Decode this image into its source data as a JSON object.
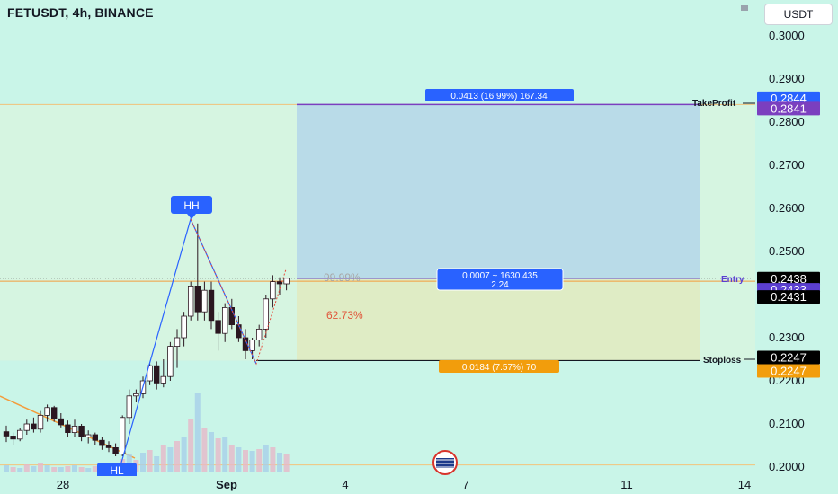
{
  "header": {
    "title": "FETUSDT, 4h, BINANCE",
    "currency_button": "USDT"
  },
  "colors": {
    "background": "#c9f5e8",
    "candle_up": "#ffffff",
    "candle_down": "#2b1720",
    "entry_line": "#5b3fd1",
    "target_zone": "#b9dbe8",
    "stop_zone": "#dfecc5",
    "ema_line": "#f39c3c",
    "trend_line": "#2962ff"
  },
  "chart_data": {
    "type": "candlestick",
    "y_axis": {
      "min": 0.2,
      "max": 0.3,
      "ticks": [
        "0.3000",
        "0.2900",
        "0.2800",
        "0.2700",
        "0.2600",
        "0.2500",
        "0.2300",
        "0.2200",
        "0.2100",
        "0.2000"
      ]
    },
    "x_axis": {
      "ticks": [
        "28",
        "Sep",
        "4",
        "7",
        "11",
        "14"
      ]
    },
    "candles": [
      [
        0.2082,
        0.2096,
        0.2058,
        0.2072
      ],
      [
        0.2072,
        0.208,
        0.205,
        0.2065
      ],
      [
        0.2065,
        0.209,
        0.206,
        0.2085
      ],
      [
        0.2085,
        0.211,
        0.2075,
        0.21
      ],
      [
        0.21,
        0.2115,
        0.208,
        0.2088
      ],
      [
        0.2088,
        0.213,
        0.208,
        0.212
      ],
      [
        0.212,
        0.2145,
        0.2105,
        0.2138
      ],
      [
        0.2138,
        0.2142,
        0.2105,
        0.2112
      ],
      [
        0.2112,
        0.2125,
        0.2092,
        0.2098
      ],
      [
        0.2098,
        0.2108,
        0.207,
        0.208
      ],
      [
        0.208,
        0.211,
        0.207,
        0.2095
      ],
      [
        0.2095,
        0.21,
        0.206,
        0.207
      ],
      [
        0.207,
        0.2085,
        0.2055,
        0.2075
      ],
      [
        0.2075,
        0.208,
        0.205,
        0.2062
      ],
      [
        0.2062,
        0.207,
        0.204,
        0.205
      ],
      [
        0.205,
        0.206,
        0.2035,
        0.2045
      ],
      [
        0.2045,
        0.2055,
        0.2025,
        0.203
      ],
      [
        0.203,
        0.212,
        0.2025,
        0.2115
      ],
      [
        0.2115,
        0.218,
        0.21,
        0.2165
      ],
      [
        0.2165,
        0.218,
        0.215,
        0.217
      ],
      [
        0.217,
        0.221,
        0.216,
        0.22
      ],
      [
        0.22,
        0.224,
        0.219,
        0.2235
      ],
      [
        0.2235,
        0.2245,
        0.218,
        0.2195
      ],
      [
        0.2195,
        0.225,
        0.2185,
        0.221
      ],
      [
        0.221,
        0.229,
        0.22,
        0.228
      ],
      [
        0.228,
        0.232,
        0.223,
        0.23
      ],
      [
        0.23,
        0.236,
        0.228,
        0.235
      ],
      [
        0.235,
        0.243,
        0.234,
        0.242
      ],
      [
        0.242,
        0.2565,
        0.234,
        0.236
      ],
      [
        0.236,
        0.243,
        0.234,
        0.241
      ],
      [
        0.241,
        0.243,
        0.232,
        0.234
      ],
      [
        0.234,
        0.236,
        0.227,
        0.231
      ],
      [
        0.231,
        0.238,
        0.229,
        0.237
      ],
      [
        0.237,
        0.239,
        0.232,
        0.233
      ],
      [
        0.233,
        0.235,
        0.229,
        0.23
      ],
      [
        0.23,
        0.232,
        0.225,
        0.227
      ],
      [
        0.227,
        0.23,
        0.225,
        0.2295
      ],
      [
        0.2295,
        0.233,
        0.228,
        0.232
      ],
      [
        0.232,
        0.24,
        0.23,
        0.239
      ],
      [
        0.239,
        0.2445,
        0.237,
        0.243
      ],
      [
        0.243,
        0.244,
        0.24,
        0.2425
      ],
      [
        0.2425,
        0.2438,
        0.241,
        0.2438
      ]
    ],
    "position": {
      "entry": 0.2438,
      "take_profit": 0.2841,
      "stop_loss": 0.2247
    },
    "price_labels": [
      {
        "text": "0.2844",
        "value": 0.2844,
        "color": "#2962ff"
      },
      {
        "text": "0.2841",
        "value": 0.2841,
        "color": "#7b3fbf"
      },
      {
        "text": "0.2438",
        "value": 0.2438,
        "color": "#000000",
        "sub": "02:19:37"
      },
      {
        "text": "0.2433",
        "value": 0.2433,
        "color": "#5b3fd1"
      },
      {
        "text": "0.2431",
        "value": 0.2431,
        "color": "#000000"
      },
      {
        "text": "0.2247",
        "value": 0.2247,
        "color": "#000000"
      },
      {
        "text": "0.2247",
        "value": 0.2247,
        "color": "#f29d0c"
      }
    ],
    "annotations": {
      "take_profit_info": "0.0413 (16.99%) 167.34",
      "entry_info_1": "0.0007 ~ 1630.435",
      "entry_info_2": "2.24",
      "stop_info": "0.0184 (7.57%) 70",
      "take_profit_label": "TakeProfit",
      "entry_label": "Entry",
      "stop_label": "Stoploss",
      "fib_upper": "99.99%",
      "fib_lower": "62.73%",
      "hh": "HH",
      "hl": "HL"
    }
  }
}
